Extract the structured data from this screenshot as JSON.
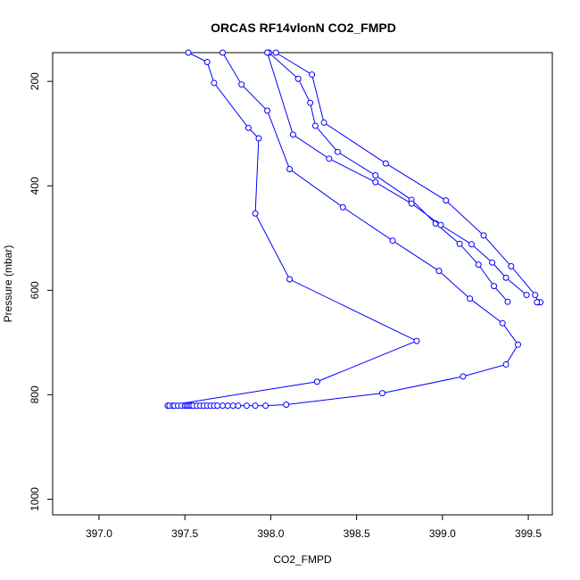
{
  "chart_data": {
    "type": "scatter",
    "title": "ORCAS RF14vlonN CO2_FMPD",
    "xlabel": "CO2_FMPD",
    "ylabel": "Pressure (mbar)",
    "xlim": [
      396.73,
      399.64
    ],
    "ylim": [
      1030,
      145
    ],
    "y_reversed": true,
    "x_ticks": [
      397.0,
      397.5,
      398.0,
      398.5,
      399.0,
      399.5
    ],
    "x_tick_labels": [
      "397.0",
      "397.5",
      "398.0",
      "398.5",
      "399.0",
      "399.5"
    ],
    "y_ticks": [
      200,
      400,
      600,
      800,
      1000
    ],
    "y_tick_labels": [
      "200",
      "400",
      "600",
      "800",
      "1000"
    ],
    "grid": false,
    "line_color": "#0000ff",
    "marker": "open-circle",
    "series": [
      {
        "values": [
          [
            397.52,
            145
          ],
          [
            397.63,
            163
          ],
          [
            397.67,
            203
          ],
          [
            397.87,
            289
          ],
          [
            397.93,
            309
          ],
          [
            397.91,
            453
          ],
          [
            398.11,
            579
          ],
          [
            398.85,
            697
          ],
          [
            398.27,
            775
          ],
          [
            397.4,
            821
          ],
          [
            397.41,
            821
          ],
          [
            397.43,
            821
          ],
          [
            397.44,
            821
          ],
          [
            397.46,
            821
          ],
          [
            397.48,
            821
          ],
          [
            397.5,
            821
          ],
          [
            397.51,
            821
          ],
          [
            397.52,
            821
          ],
          [
            397.53,
            821
          ],
          [
            397.54,
            821
          ],
          [
            397.55,
            821
          ],
          [
            397.57,
            821
          ],
          [
            397.59,
            821
          ],
          [
            397.61,
            821
          ],
          [
            397.63,
            821
          ],
          [
            397.65,
            821
          ],
          [
            397.67,
            821
          ],
          [
            397.69,
            821
          ],
          [
            397.72,
            821
          ],
          [
            397.75,
            821
          ],
          [
            397.78,
            821
          ],
          [
            397.81,
            821
          ],
          [
            397.86,
            821
          ],
          [
            397.91,
            821
          ],
          [
            397.97,
            821
          ],
          [
            398.09,
            819
          ],
          [
            398.65,
            797
          ],
          [
            399.12,
            765
          ],
          [
            399.37,
            742
          ],
          [
            399.44,
            704
          ],
          [
            399.35,
            663
          ],
          [
            399.16,
            616
          ],
          [
            398.98,
            563
          ],
          [
            398.71,
            505
          ],
          [
            398.42,
            441
          ],
          [
            398.11,
            368
          ],
          [
            397.98,
            256
          ],
          [
            397.83,
            206
          ],
          [
            397.72,
            145
          ]
        ]
      },
      {
        "values": [
          [
            397.99,
            145
          ],
          [
            398.16,
            195
          ],
          [
            398.23,
            241
          ],
          [
            398.26,
            285
          ],
          [
            398.39,
            335
          ],
          [
            398.61,
            380
          ],
          [
            398.82,
            427
          ],
          [
            398.96,
            472
          ],
          [
            399.1,
            511
          ],
          [
            399.21,
            551
          ],
          [
            399.3,
            592
          ],
          [
            399.38,
            622
          ]
        ]
      },
      {
        "values": [
          [
            398.03,
            145
          ],
          [
            398.24,
            187
          ],
          [
            398.31,
            279
          ],
          [
            398.67,
            357
          ],
          [
            399.02,
            428
          ],
          [
            399.24,
            495
          ],
          [
            399.4,
            554
          ],
          [
            399.54,
            609
          ],
          [
            399.56,
            623
          ],
          [
            399.57,
            623
          ],
          [
            399.55,
            623
          ]
        ]
      },
      {
        "values": [
          [
            397.98,
            145
          ],
          [
            398.13,
            302
          ],
          [
            398.34,
            348
          ],
          [
            398.61,
            393
          ],
          [
            398.82,
            434
          ],
          [
            398.99,
            475
          ],
          [
            399.17,
            512
          ],
          [
            399.29,
            547
          ],
          [
            399.37,
            576
          ],
          [
            399.49,
            609
          ]
        ]
      }
    ]
  }
}
